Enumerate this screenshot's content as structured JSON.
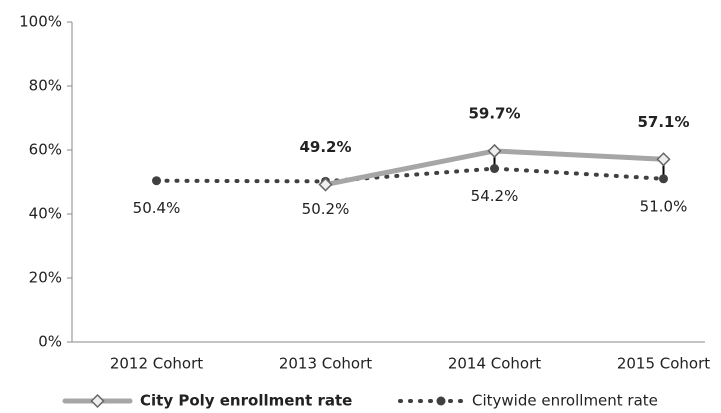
{
  "chart_data": {
    "type": "line",
    "categories": [
      "2012 Cohort",
      "2013 Cohort",
      "2014 Cohort",
      "2015 Cohort"
    ],
    "series": [
      {
        "name": "City Poly enrollment rate",
        "color": "#a6a6a6",
        "values": [
          null,
          49.2,
          59.7,
          57.1
        ],
        "value_labels": [
          null,
          "49.2%",
          "59.7%",
          "57.1%"
        ]
      },
      {
        "name": "Citywide enrollment rate",
        "color": "#404040",
        "values": [
          50.4,
          50.2,
          54.2,
          51.0
        ],
        "value_labels": [
          "50.4%",
          "50.2%",
          "54.2%",
          "51.0%"
        ]
      }
    ],
    "ylim": [
      0,
      100
    ],
    "yticks": [
      {
        "value": 0,
        "label": "0%"
      },
      {
        "value": 20,
        "label": "20%"
      },
      {
        "value": 40,
        "label": "40%"
      },
      {
        "value": 60,
        "label": "60%"
      },
      {
        "value": 80,
        "label": "80%"
      },
      {
        "value": 100,
        "label": "100%"
      }
    ],
    "legend": "bottom"
  }
}
